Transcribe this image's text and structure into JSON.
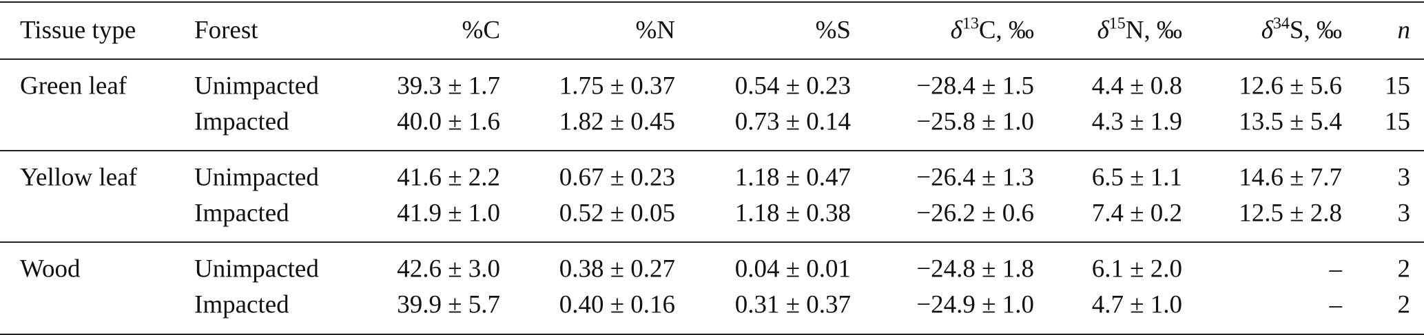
{
  "table": {
    "headers": [
      "Tissue type",
      "Forest",
      "%C",
      "%N",
      "%S",
      {
        "pre": "δ",
        "sup": "13",
        "post": "C, ‰"
      },
      {
        "pre": "δ",
        "sup": "15",
        "post": "N, ‰"
      },
      {
        "pre": "δ",
        "sup": "34",
        "post": "S, ‰"
      },
      "n"
    ],
    "groups": [
      {
        "tissue": "Green leaf",
        "rows": [
          [
            "Unimpacted",
            "39.3 ± 1.7",
            "1.75 ± 0.37",
            "0.54 ± 0.23",
            "−28.4 ± 1.5",
            "4.4 ± 0.8",
            "12.6 ± 5.6",
            "15"
          ],
          [
            "Impacted",
            "40.0 ± 1.6",
            "1.82 ± 0.45",
            "0.73 ± 0.14",
            "−25.8 ± 1.0",
            "4.3 ± 1.9",
            "13.5 ± 5.4",
            "15"
          ]
        ]
      },
      {
        "tissue": "Yellow leaf",
        "rows": [
          [
            "Unimpacted",
            "41.6 ± 2.2",
            "0.67 ± 0.23",
            "1.18 ± 0.47",
            "−26.4 ± 1.3",
            "6.5 ± 1.1",
            "14.6 ± 7.7",
            "3"
          ],
          [
            "Impacted",
            "41.9 ± 1.0",
            "0.52 ± 0.05",
            "1.18 ± 0.38",
            "−26.2 ± 0.6",
            "7.4 ± 0.2",
            "12.5 ± 2.8",
            "3"
          ]
        ]
      },
      {
        "tissue": "Wood",
        "rows": [
          [
            "Unimpacted",
            "42.6 ± 3.0",
            "0.38 ± 0.27",
            "0.04 ± 0.01",
            "−24.8 ± 1.8",
            "6.1 ± 2.0",
            "–",
            "2"
          ],
          [
            "Impacted",
            "39.9 ± 5.7",
            "0.40 ± 0.16",
            "0.31 ± 0.37",
            "−24.9 ± 1.0",
            "4.7 ± 1.0",
            "–",
            "2"
          ]
        ]
      }
    ]
  }
}
